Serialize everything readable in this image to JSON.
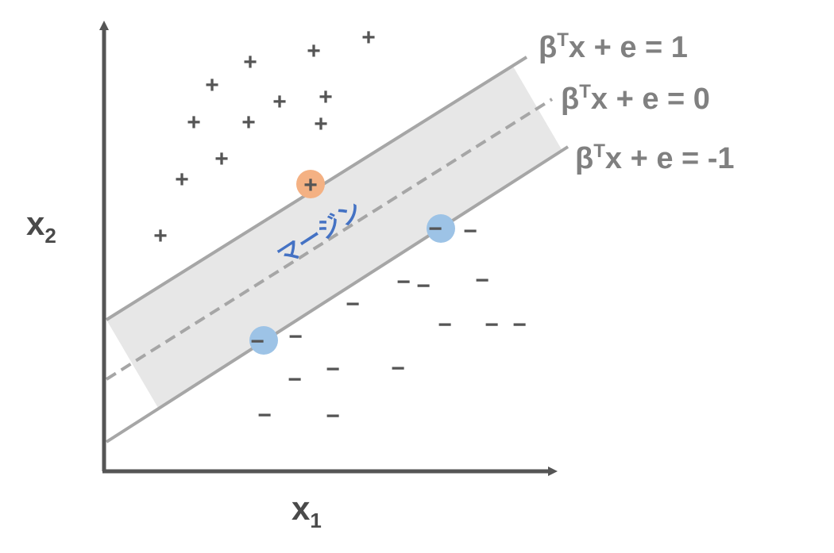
{
  "axes": {
    "x_label": "x",
    "x_sub": "1",
    "y_label": "x",
    "y_sub": "2"
  },
  "equations": {
    "upper": {
      "beta": "β",
      "sup": "T",
      "rest": "x + e = 1"
    },
    "middle": {
      "beta": "β",
      "sup": "T",
      "rest": "x + e = 0"
    },
    "lower": {
      "beta": "β",
      "sup": "T",
      "rest": "x + e = -1"
    }
  },
  "margin_label": "マージン",
  "plus_symbol": "+",
  "minus_symbol": "−",
  "support_vectors": {
    "positive_symbol": "+",
    "negative_symbol": "−",
    "positive_color": "#f4b183",
    "negative_color": "#9dc3e6"
  },
  "colors": {
    "axis": "#555555",
    "boundary": "#a6a6a6",
    "margin_band": "#e7e7e7",
    "label": "#4472c4"
  }
}
